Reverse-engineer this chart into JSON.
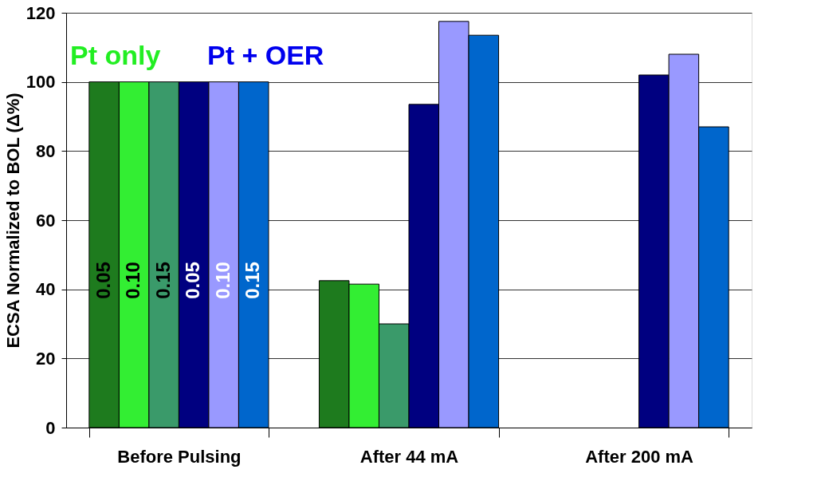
{
  "chart_data": {
    "type": "bar",
    "ylabel": "ECSA Normalized to BOL (Δ%)",
    "categories": [
      "Before Pulsing",
      "After 44 mA",
      "After 200 mA"
    ],
    "series": [
      {
        "name": "0.05",
        "color": "#1e7b1e",
        "values": [
          100,
          42.5,
          null
        ]
      },
      {
        "name": "0.10",
        "color": "#33ee33",
        "values": [
          100,
          41.5,
          null
        ]
      },
      {
        "name": "0.15",
        "color": "#3a9a6a",
        "values": [
          100,
          30,
          null
        ]
      },
      {
        "name": "0.05",
        "color": "#000080",
        "values": [
          100,
          93.5,
          102
        ]
      },
      {
        "name": "0.10",
        "color": "#9999ff",
        "values": [
          100,
          117.5,
          108
        ]
      },
      {
        "name": "0.15",
        "color": "#0066cc",
        "values": [
          100,
          113.5,
          87
        ]
      }
    ],
    "ylim": [
      0,
      120
    ],
    "yticks": [
      0,
      20,
      40,
      60,
      80,
      100,
      120
    ],
    "grid": "y",
    "legend": false,
    "annotations": [
      "Pt only",
      "Pt + OER"
    ]
  }
}
